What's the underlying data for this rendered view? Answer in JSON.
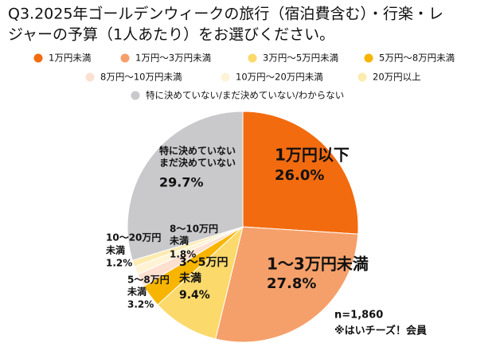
{
  "chart_data": {
    "type": "pie",
    "title": [
      "Q3.2025年ゴールデンウィークの旅行（宿泊費含む）・行楽・レ",
      "ジャーの予算（1人あたり）をお選びください。"
    ],
    "categories": [
      "1万円未満",
      "1万円～3万円未満",
      "3万円～5万円未満",
      "5万円～8万円未満",
      "8万円～10万円未満",
      "10万円～20万円未満",
      "20万円以上",
      "特に決めていない/まだ決めていない/わからない"
    ],
    "values": [
      26.0,
      27.8,
      9.4,
      3.2,
      1.8,
      1.2,
      0.9,
      29.7
    ],
    "value_labels": [
      "26.0%",
      "27.8%",
      "9.4%",
      "3.2%",
      "1.8%",
      "1.2%",
      null,
      "29.7%"
    ],
    "slice_labels": [
      [
        "1万円以下"
      ],
      [
        "1～3万円未満"
      ],
      [
        "3～5万円",
        "未満"
      ],
      [
        "5～8万円",
        "未満"
      ],
      [
        "8～10万円",
        "未満"
      ],
      [
        "10～20万円",
        "未満"
      ],
      null,
      [
        "特に決めていない",
        "まだ決めていない"
      ]
    ],
    "colors": [
      "#f26b0f",
      "#f5a06a",
      "#fbd96b",
      "#f7b500",
      "#fde0d0",
      "#fff3d6",
      "#fdebb0",
      "#c9c9cc"
    ],
    "notes": [
      "n=1,860",
      "※はいチーズ！会員"
    ]
  }
}
